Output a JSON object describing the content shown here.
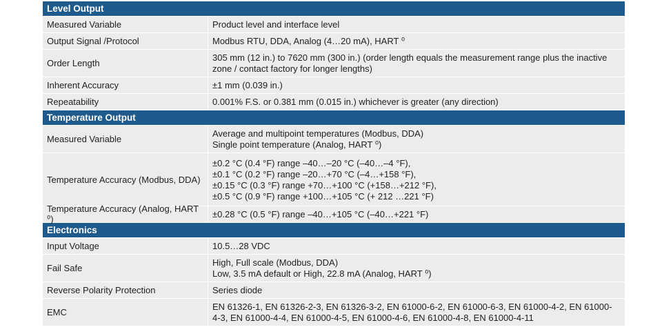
{
  "sections": [
    {
      "title": "Level Output",
      "rows": [
        {
          "label": "Measured Variable",
          "lines": [
            "Product level and interface level"
          ],
          "h": 23
        },
        {
          "label": "Output Signal /Protocol",
          "lines": [
            "Modbus RTU, DDA, Analog (4…20 mA), HART ⁰"
          ],
          "h": 23
        },
        {
          "label": "Order Length",
          "lines": [
            "305 mm (12 in.) to 7620 mm (300 in.) (order length equals the measurement range plus the inactive",
            "zone / contact factory for longer lengths)"
          ],
          "h": 39
        },
        {
          "label": "Inherent Accuracy",
          "lines": [
            "±1 mm (0.039 in.)"
          ],
          "h": 23
        },
        {
          "label": "Repeatability",
          "lines": [
            "0.001% F.S. or 0.381 mm (0.015 in.) whichever is greater (any direction)"
          ],
          "h": 23
        }
      ]
    },
    {
      "title": "Temperature Output",
      "rows": [
        {
          "label": "Measured Variable",
          "lines": [
            "Average and multipoint temperatures (Modbus, DDA)",
            "Single point temperature (Analog, HART ⁰)"
          ],
          "h": 39
        },
        {
          "label": "Temperature Accuracy (Modbus, DDA)",
          "lines": [
            "±0.2 °C (0.4 °F) range –40…–20 °C (–40…–4 °F),",
            "±0.1 °C (0.2 °F) range –20…+70 °C (–4…+158 °F),",
            "±0.15 °C (0.3 °F) range +70…+100 °C (+158…+212 °F),",
            "±0.5 °C (0.9 °F) range +100…+105 °C (+ 212 …221 °F)"
          ],
          "h": 76
        },
        {
          "label": "Temperature Accuracy (Analog, HART ⁰)",
          "lines": [
            "±0.28 °C (0.5 °F) range –40…+105 °C (–40…+221 °F)"
          ],
          "h": 23
        }
      ]
    },
    {
      "title": "Electronics",
      "rows": [
        {
          "label": "Input Voltage",
          "lines": [
            "10.5…28 VDC"
          ],
          "h": 23
        },
        {
          "label": "Fail Safe",
          "lines": [
            "High, Full scale (Modbus, DDA)",
            "Low, 3.5 mA default or High, 22.8 mA (Analog, HART ⁰)"
          ],
          "h": 39
        },
        {
          "label": "Reverse Polarity Protection",
          "lines": [
            "Series diode"
          ],
          "h": 23
        },
        {
          "label": "EMC",
          "lines": [
            "EN 61326-1, EN 61326-2-3, EN 61326-3-2, EN 61000-6-2, EN 61000-6-3, EN 61000-4-2, EN 61000-",
            "4-3, EN 61000-4-4, EN 61000-4-5, EN 61000-4-6, EN 61000-4-8, EN 61000-4-11"
          ],
          "h": 39
        }
      ]
    }
  ]
}
